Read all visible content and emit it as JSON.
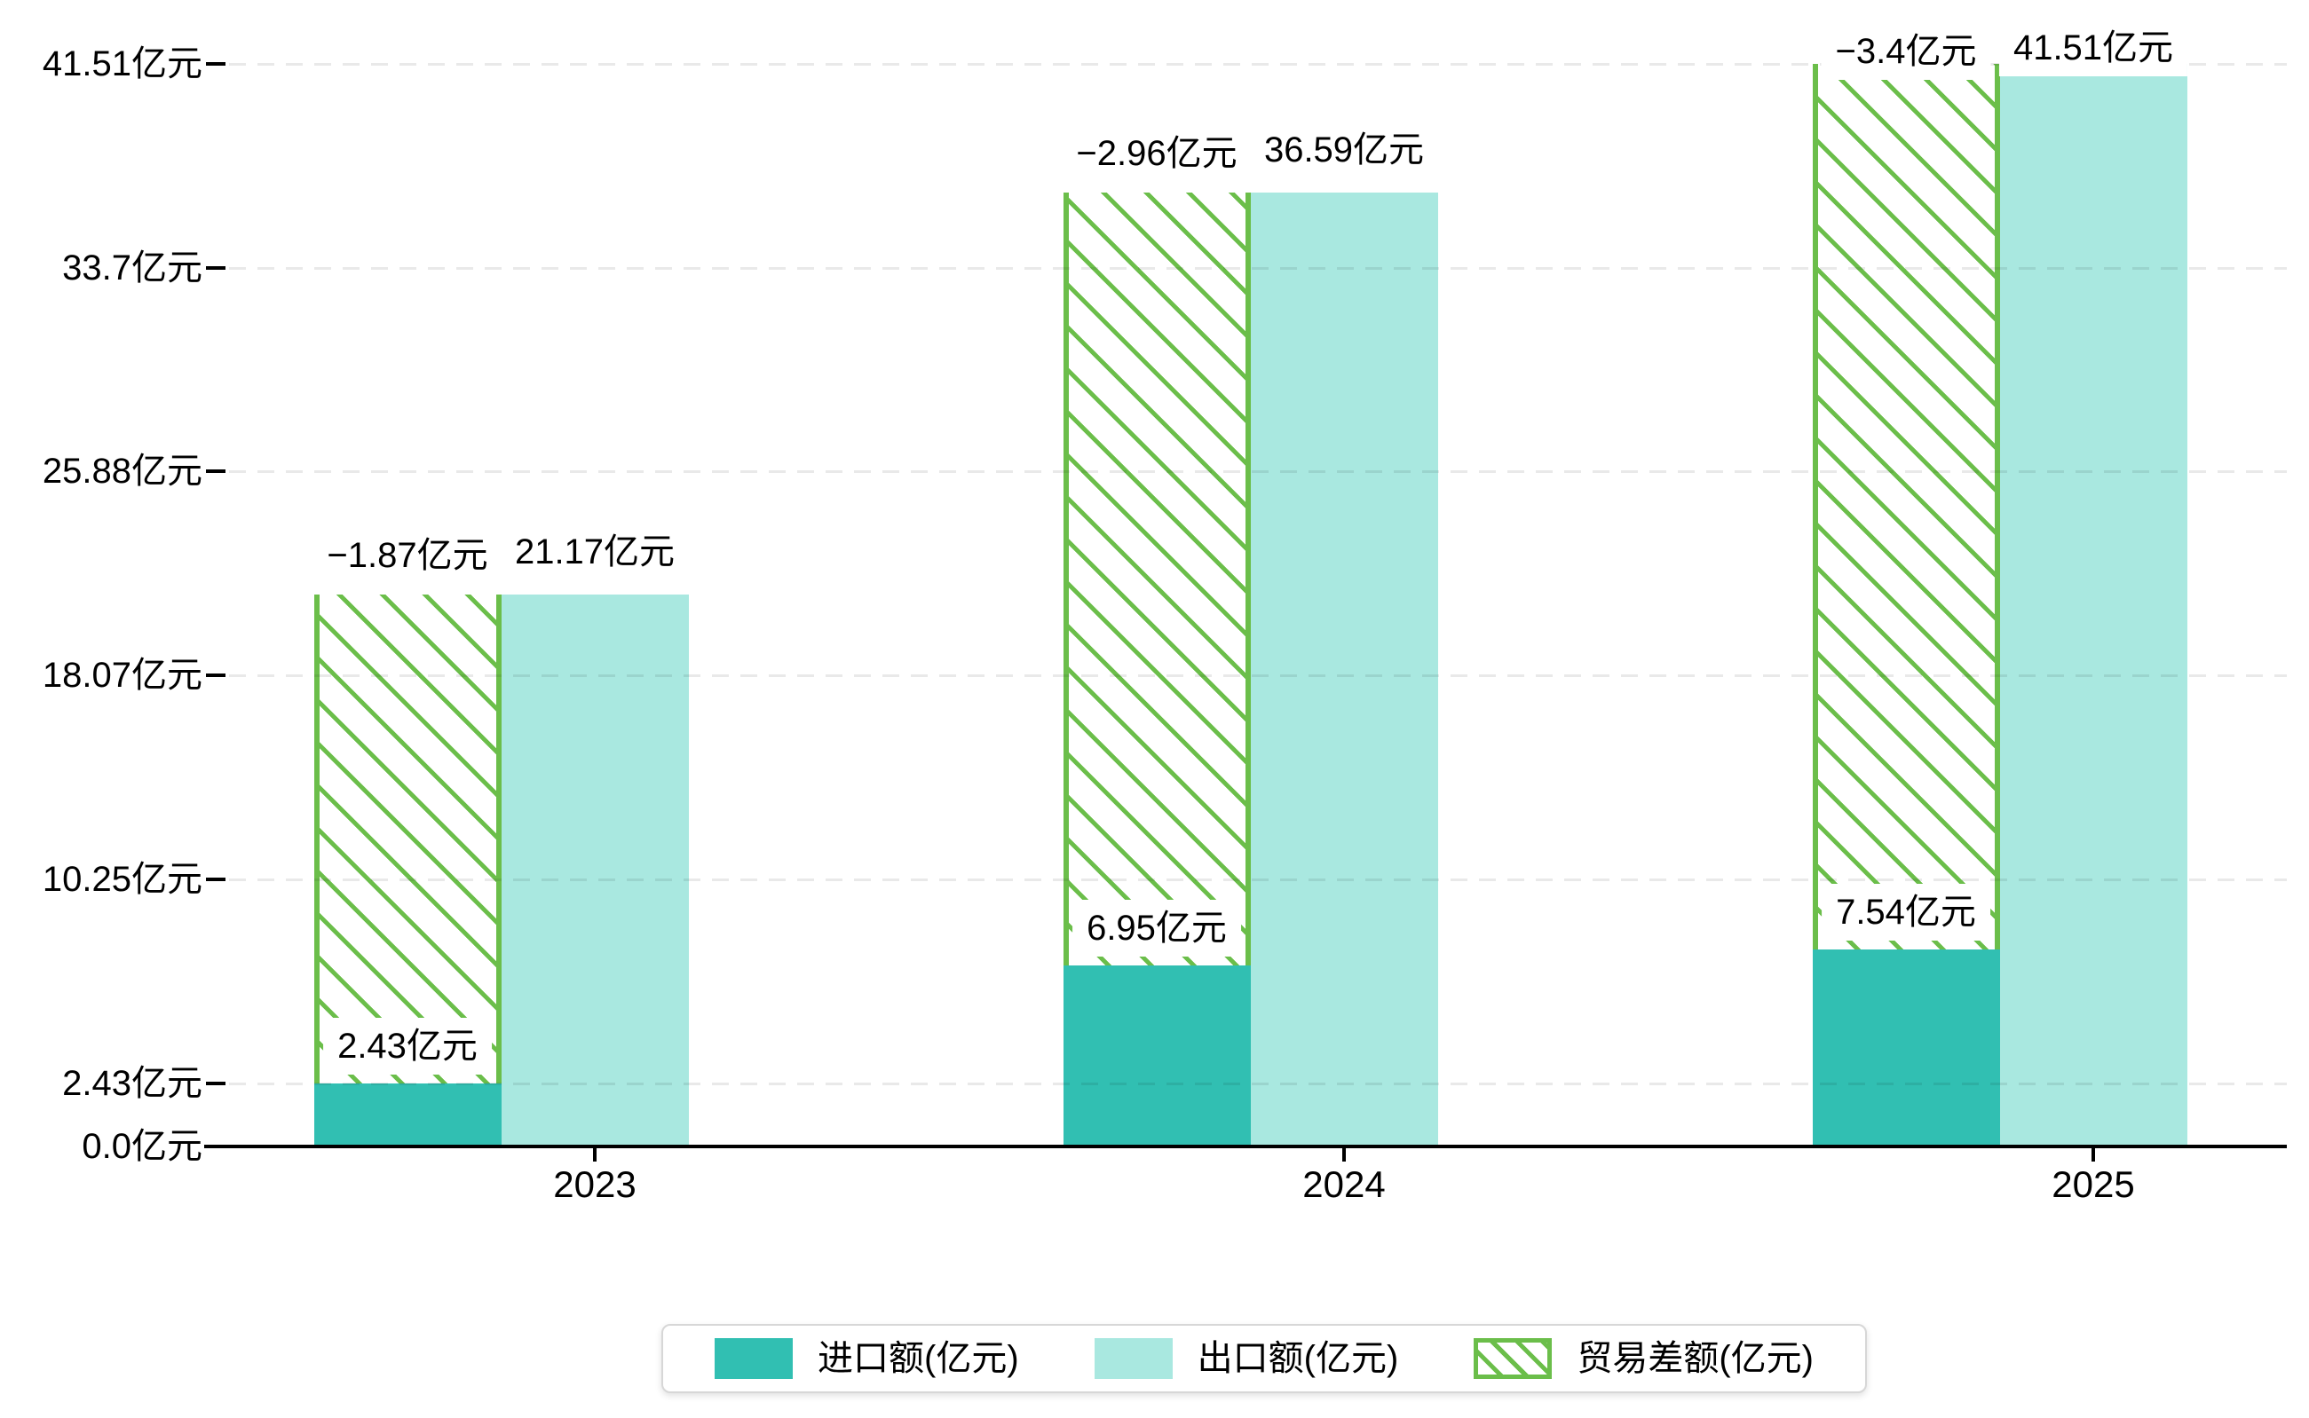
{
  "chart_data": {
    "type": "bar",
    "title": "",
    "xlabel": "",
    "ylabel": "",
    "unit": "亿元",
    "categories": [
      "2023",
      "2024",
      "2025"
    ],
    "series": [
      {
        "name": "进口额(亿元)",
        "role": "import",
        "color": "#31bfb2",
        "values": [
          2.43,
          6.95,
          7.54
        ],
        "labels": [
          "2.43亿元",
          "6.95亿元",
          "7.54亿元"
        ]
      },
      {
        "name": "出口额(亿元)",
        "role": "export",
        "color": "#a9e8e0",
        "values": [
          21.17,
          36.59,
          41.51
        ],
        "labels": [
          "21.17亿元",
          "36.59亿元",
          "41.51亿元"
        ]
      },
      {
        "name": "贸易差额(亿元)",
        "role": "trade-balance",
        "color": "#6bbe4a",
        "style": "hatched",
        "values": [
          -1.87,
          -2.96,
          -3.4
        ],
        "labels": [
          "−1.87亿元",
          "−2.96亿元",
          "−3.4亿元"
        ],
        "drawn_spans": [
          [
            2.43,
            21.17
          ],
          [
            6.95,
            36.59
          ],
          [
            7.54,
            41.51
          ]
        ]
      }
    ],
    "y_ticks": [
      {
        "value": 0.0,
        "label": "0.0亿元",
        "gridline": false
      },
      {
        "value": 2.43,
        "label": "2.43亿元",
        "gridline": true
      },
      {
        "value": 10.25,
        "label": "10.25亿元",
        "gridline": true
      },
      {
        "value": 18.07,
        "label": "18.07亿元",
        "gridline": true
      },
      {
        "value": 25.88,
        "label": "25.88亿元",
        "gridline": true
      },
      {
        "value": 33.7,
        "label": "33.7亿元",
        "gridline": true
      },
      {
        "value": 41.51,
        "label": "41.51亿元",
        "gridline": true
      }
    ],
    "ylim": [
      0,
      43.9
    ],
    "grid": "dashed-horizontal",
    "legend_position": "bottom-center",
    "colors": {
      "import_bar": "#31bfb2",
      "export_bar": "#a9e8e0",
      "hatch_green": "#6bbe4a",
      "axis": "#000000",
      "gridline": "#e8e8e8",
      "background": "#ffffff"
    }
  }
}
